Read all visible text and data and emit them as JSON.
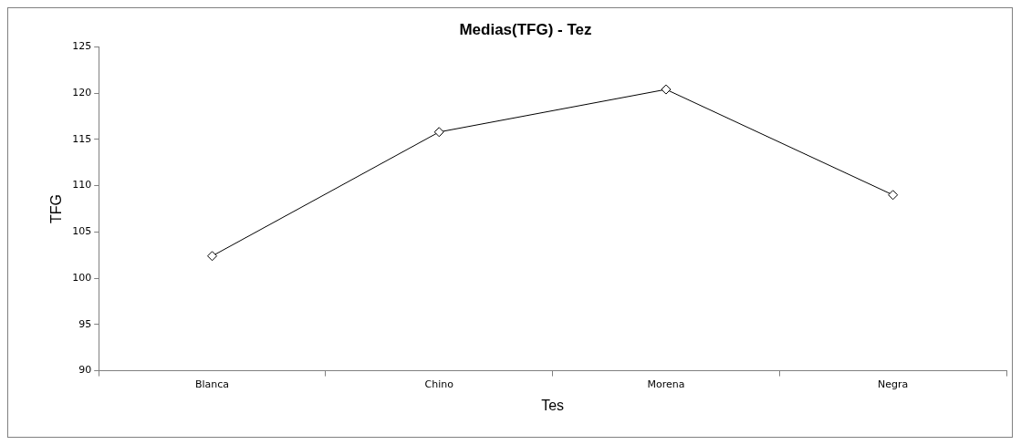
{
  "chart_data": {
    "type": "line",
    "title": "Medias(TFG) - Tez",
    "xlabel": "Tes",
    "ylabel": "TFG",
    "categories": [
      "Blanca",
      "Chino",
      "Morena",
      "Negra"
    ],
    "series": [
      {
        "color": "#000000",
        "values": [
          102.4,
          115.8,
          120.4,
          109.0
        ]
      }
    ],
    "ylim": [
      90,
      125
    ],
    "yticks": [
      90,
      95,
      100,
      105,
      110,
      115,
      120,
      125
    ],
    "grid": false,
    "legend": false,
    "marker": "diamond",
    "line_style": "solid"
  }
}
